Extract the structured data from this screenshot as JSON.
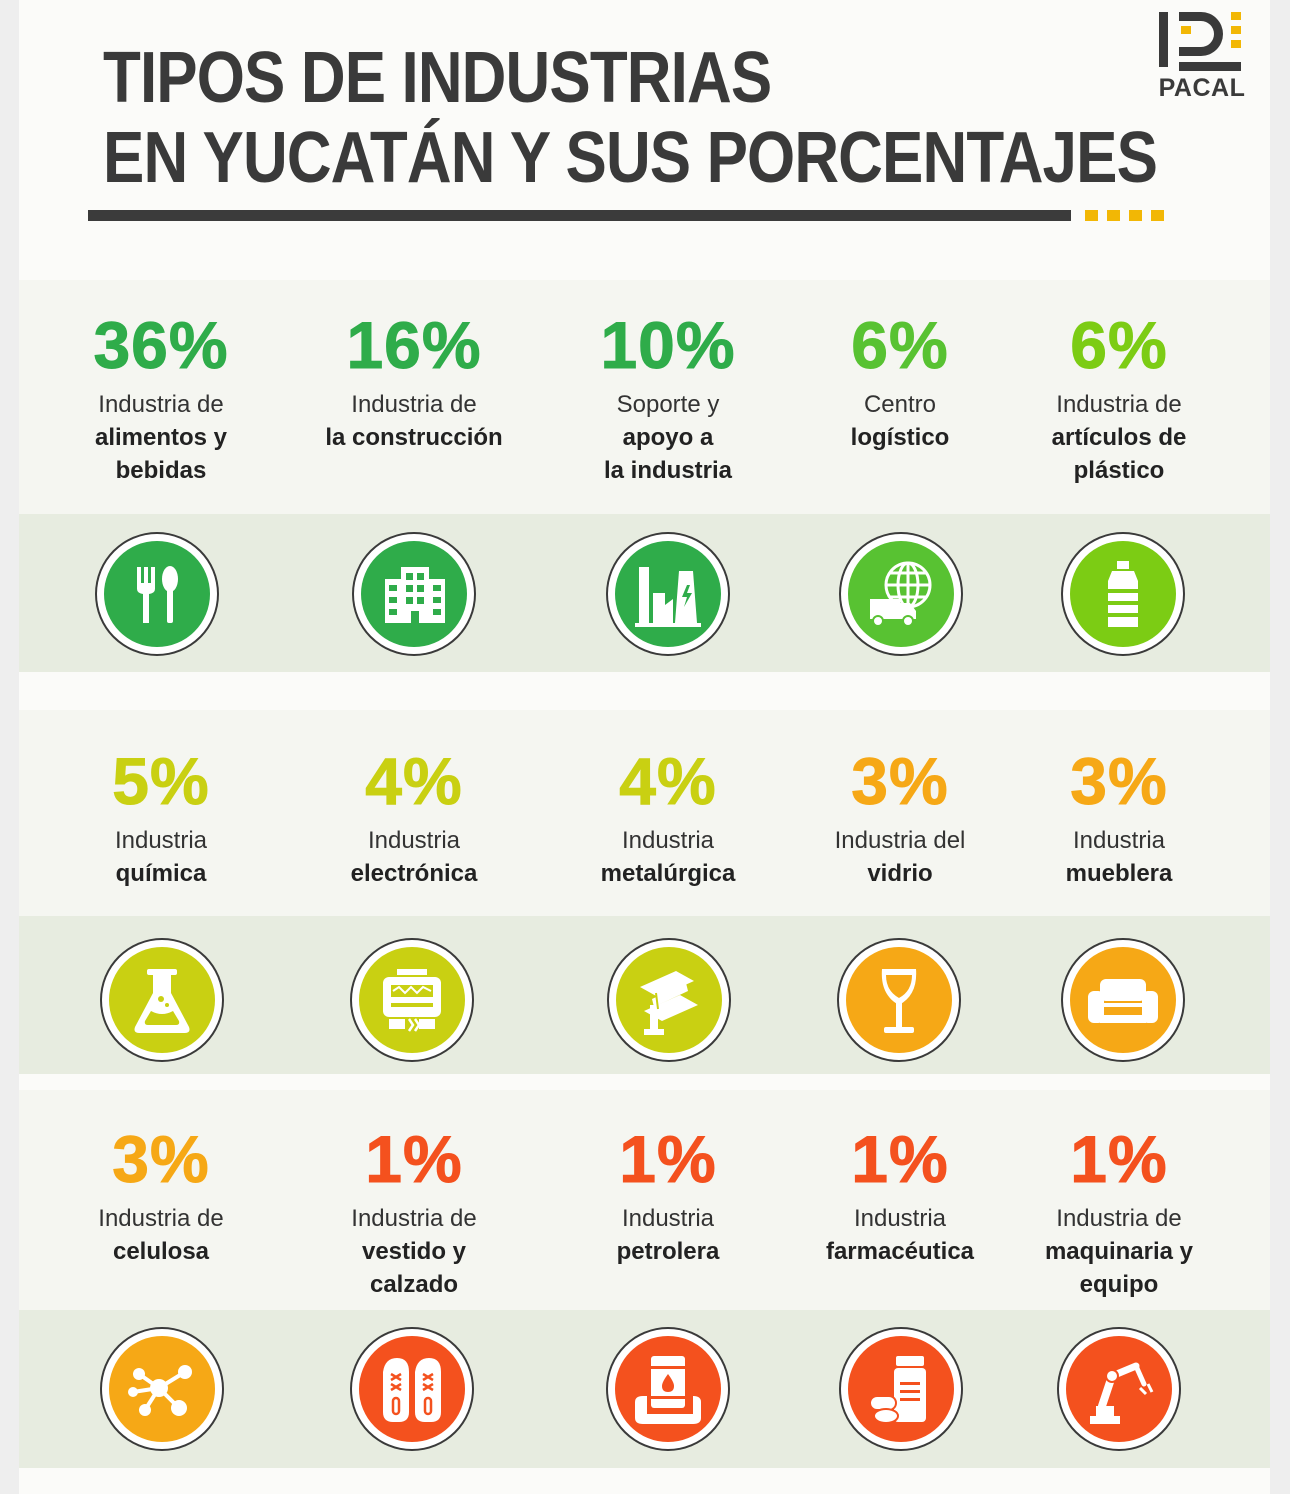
{
  "header": {
    "title_line1": "TIPOS DE INDUSTRIAS",
    "title_line2": "EN YUCATÁN Y SUS PORCENTAJES",
    "logo_text": "PACAL",
    "accent_color": "#f2b705"
  },
  "rows": [
    {
      "items": [
        {
          "percent": "36%",
          "label_normal": "Industria de",
          "label_bold": [
            "alimentos y",
            "bebidas"
          ],
          "icon": "fork-spoon-icon",
          "color": "#2fac4a"
        },
        {
          "percent": "16%",
          "label_normal": "Industria de",
          "label_bold": [
            "la construcción"
          ],
          "icon": "building-icon",
          "color": "#2fac4a"
        },
        {
          "percent": "10%",
          "label_normal": "Soporte y",
          "label_bold": [
            "apoyo a",
            "la industria"
          ],
          "icon": "factory-icon",
          "color": "#2fac4a"
        },
        {
          "percent": "6%",
          "label_normal": "Centro",
          "label_bold": [
            "logístico"
          ],
          "icon": "globe-truck-icon",
          "color": "#58c232"
        },
        {
          "percent": "6%",
          "label_normal": "Industria de",
          "label_bold": [
            "artículos de",
            "plástico"
          ],
          "icon": "plastic-bottle-icon",
          "color": "#7ccc14"
        }
      ]
    },
    {
      "items": [
        {
          "percent": "5%",
          "label_normal": "Industria",
          "label_bold": [
            "química"
          ],
          "icon": "flask-icon",
          "color": "#c9d012"
        },
        {
          "percent": "4%",
          "label_normal": "Industria",
          "label_bold": [
            "electrónica"
          ],
          "icon": "electronic-device-icon",
          "color": "#c9d012"
        },
        {
          "percent": "4%",
          "label_normal": "Industria",
          "label_bold": [
            "metalúrgica"
          ],
          "icon": "steel-beam-icon",
          "color": "#c9d012"
        },
        {
          "percent": "3%",
          "label_normal": "Industria del",
          "label_bold": [
            "vidrio"
          ],
          "icon": "wine-glass-icon",
          "color": "#f6a816"
        },
        {
          "percent": "3%",
          "label_normal": "Industria",
          "label_bold": [
            "mueblera"
          ],
          "icon": "sofa-icon",
          "color": "#f6a816"
        }
      ]
    },
    {
      "items": [
        {
          "percent": "3%",
          "label_normal": "Industria de",
          "label_bold": [
            "celulosa"
          ],
          "icon": "molecule-icon",
          "color": "#f6a816"
        },
        {
          "percent": "1%",
          "label_normal": "Industria de",
          "label_bold": [
            "vestido y",
            "calzado"
          ],
          "icon": "shoes-icon",
          "color": "#f4511e"
        },
        {
          "percent": "1%",
          "label_normal": "Industria",
          "label_bold": [
            "petrolera"
          ],
          "icon": "oil-barrel-icon",
          "color": "#f4511e"
        },
        {
          "percent": "1%",
          "label_normal": "Industria",
          "label_bold": [
            "farmacéutica"
          ],
          "icon": "pills-icon",
          "color": "#f4511e"
        },
        {
          "percent": "1%",
          "label_normal": "Industria de",
          "label_bold": [
            "maquinaria y",
            "equipo"
          ],
          "icon": "robot-arm-icon",
          "color": "#f4511e"
        }
      ]
    }
  ]
}
